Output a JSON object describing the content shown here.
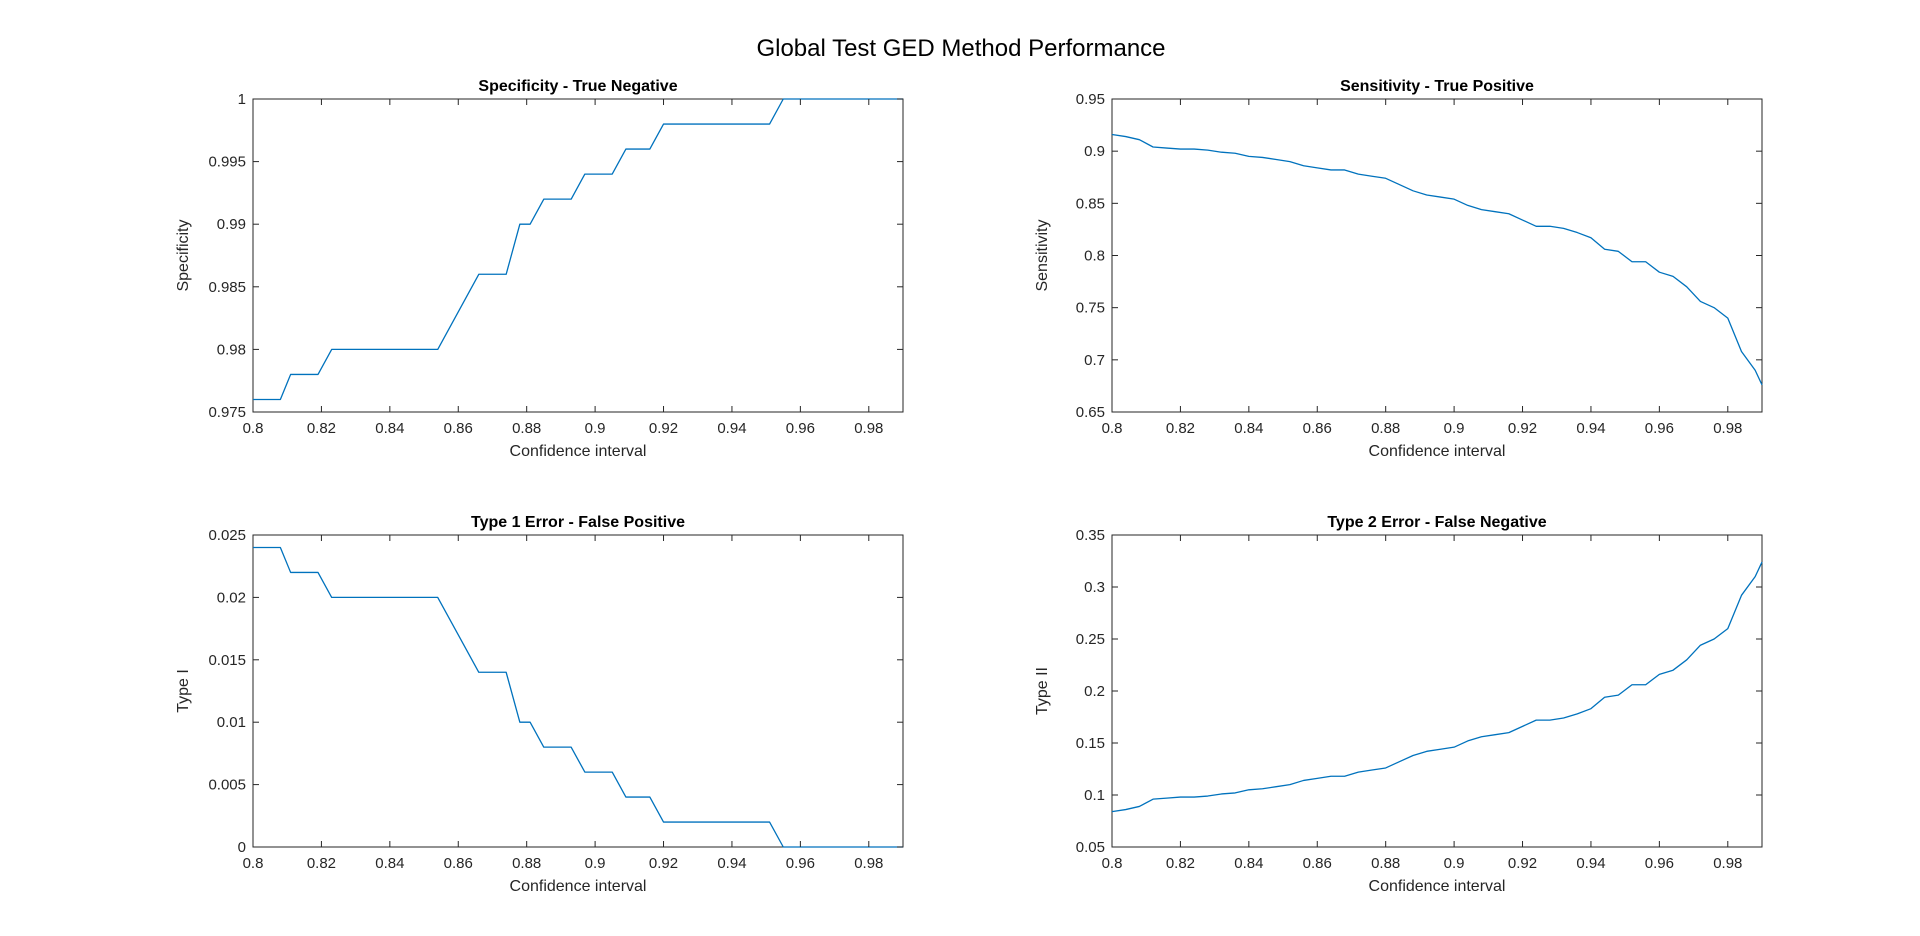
{
  "figure": {
    "title": "Global Test GED Method Performance",
    "line_color": "#0072BD",
    "axis_color": "#262626"
  },
  "chart_data": [
    {
      "type": "line",
      "title": "Specificity - True Negative",
      "xlabel": "Confidence interval",
      "ylabel": "Specificity",
      "xlim": [
        0.8,
        0.99
      ],
      "ylim": [
        0.975,
        1
      ],
      "xticks": [
        0.8,
        0.82,
        0.84,
        0.86,
        0.88,
        0.9,
        0.92,
        0.94,
        0.96,
        0.98
      ],
      "xtick_labels": [
        "0.8",
        "0.82",
        "0.84",
        "0.86",
        "0.88",
        "0.9",
        "0.92",
        "0.94",
        "0.96",
        "0.98"
      ],
      "yticks": [
        0.975,
        0.98,
        0.985,
        0.99,
        0.995,
        1
      ],
      "ytick_labels": [
        "0.975",
        "0.98",
        "0.985",
        "0.99",
        "0.995",
        "1"
      ],
      "grid": false,
      "series": [
        {
          "x": [
            0.8,
            0.808,
            0.811,
            0.819,
            0.823,
            0.854,
            0.866,
            0.874,
            0.878,
            0.881,
            0.885,
            0.893,
            0.897,
            0.905,
            0.909,
            0.916,
            0.92,
            0.951,
            0.955,
            0.99
          ],
          "y": [
            0.976,
            0.976,
            0.978,
            0.978,
            0.98,
            0.98,
            0.986,
            0.986,
            0.99,
            0.99,
            0.992,
            0.992,
            0.994,
            0.994,
            0.996,
            0.996,
            0.998,
            0.998,
            1.0,
            1.0
          ]
        }
      ]
    },
    {
      "type": "line",
      "title": "Sensitivity - True Positive",
      "xlabel": "Confidence interval",
      "ylabel": "Sensitivity",
      "xlim": [
        0.8,
        0.99
      ],
      "ylim": [
        0.65,
        0.95
      ],
      "xticks": [
        0.8,
        0.82,
        0.84,
        0.86,
        0.88,
        0.9,
        0.92,
        0.94,
        0.96,
        0.98
      ],
      "xtick_labels": [
        "0.8",
        "0.82",
        "0.84",
        "0.86",
        "0.88",
        "0.9",
        "0.92",
        "0.94",
        "0.96",
        "0.98"
      ],
      "yticks": [
        0.65,
        0.7,
        0.75,
        0.8,
        0.85,
        0.9,
        0.95
      ],
      "ytick_labels": [
        "0.65",
        "0.7",
        "0.75",
        "0.8",
        "0.85",
        "0.9",
        "0.95"
      ],
      "grid": false,
      "series": [
        {
          "x": [
            0.8,
            0.804,
            0.808,
            0.812,
            0.816,
            0.82,
            0.824,
            0.828,
            0.832,
            0.836,
            0.84,
            0.844,
            0.848,
            0.852,
            0.856,
            0.86,
            0.864,
            0.868,
            0.872,
            0.876,
            0.88,
            0.884,
            0.888,
            0.892,
            0.896,
            0.9,
            0.904,
            0.908,
            0.912,
            0.916,
            0.92,
            0.924,
            0.928,
            0.932,
            0.936,
            0.94,
            0.944,
            0.948,
            0.952,
            0.956,
            0.96,
            0.964,
            0.968,
            0.972,
            0.976,
            0.98,
            0.984,
            0.988,
            0.99
          ],
          "y": [
            0.916,
            0.914,
            0.911,
            0.904,
            0.903,
            0.902,
            0.902,
            0.901,
            0.899,
            0.898,
            0.895,
            0.894,
            0.892,
            0.89,
            0.886,
            0.884,
            0.882,
            0.882,
            0.878,
            0.876,
            0.874,
            0.868,
            0.862,
            0.858,
            0.856,
            0.854,
            0.848,
            0.844,
            0.842,
            0.84,
            0.834,
            0.828,
            0.828,
            0.826,
            0.822,
            0.817,
            0.806,
            0.804,
            0.794,
            0.794,
            0.784,
            0.78,
            0.77,
            0.756,
            0.75,
            0.74,
            0.708,
            0.69,
            0.676
          ]
        }
      ]
    },
    {
      "type": "line",
      "title": "Type 1 Error - False Positive",
      "xlabel": "Confidence interval",
      "ylabel": "Type I",
      "xlim": [
        0.8,
        0.99
      ],
      "ylim": [
        0,
        0.025
      ],
      "xticks": [
        0.8,
        0.82,
        0.84,
        0.86,
        0.88,
        0.9,
        0.92,
        0.94,
        0.96,
        0.98
      ],
      "xtick_labels": [
        "0.8",
        "0.82",
        "0.84",
        "0.86",
        "0.88",
        "0.9",
        "0.92",
        "0.94",
        "0.96",
        "0.98"
      ],
      "yticks": [
        0,
        0.005,
        0.01,
        0.015,
        0.02,
        0.025
      ],
      "ytick_labels": [
        "0",
        "0.005",
        "0.01",
        "0.015",
        "0.02",
        "0.025"
      ],
      "grid": false,
      "series": [
        {
          "x": [
            0.8,
            0.808,
            0.811,
            0.819,
            0.823,
            0.854,
            0.866,
            0.874,
            0.878,
            0.881,
            0.885,
            0.893,
            0.897,
            0.905,
            0.909,
            0.916,
            0.92,
            0.951,
            0.955,
            0.99
          ],
          "y": [
            0.024,
            0.024,
            0.022,
            0.022,
            0.02,
            0.02,
            0.014,
            0.014,
            0.01,
            0.01,
            0.008,
            0.008,
            0.006,
            0.006,
            0.004,
            0.004,
            0.002,
            0.002,
            0.0,
            0.0
          ]
        }
      ]
    },
    {
      "type": "line",
      "title": "Type 2 Error - False Negative",
      "xlabel": "Confidence interval",
      "ylabel": "Type II",
      "xlim": [
        0.8,
        0.99
      ],
      "ylim": [
        0.05,
        0.35
      ],
      "xticks": [
        0.8,
        0.82,
        0.84,
        0.86,
        0.88,
        0.9,
        0.92,
        0.94,
        0.96,
        0.98
      ],
      "xtick_labels": [
        "0.8",
        "0.82",
        "0.84",
        "0.86",
        "0.88",
        "0.9",
        "0.92",
        "0.94",
        "0.96",
        "0.98"
      ],
      "yticks": [
        0.05,
        0.1,
        0.15,
        0.2,
        0.25,
        0.3,
        0.35
      ],
      "ytick_labels": [
        "0.05",
        "0.1",
        "0.15",
        "0.2",
        "0.25",
        "0.3",
        "0.35"
      ],
      "grid": false,
      "series": [
        {
          "x": [
            0.8,
            0.804,
            0.808,
            0.812,
            0.816,
            0.82,
            0.824,
            0.828,
            0.832,
            0.836,
            0.84,
            0.844,
            0.848,
            0.852,
            0.856,
            0.86,
            0.864,
            0.868,
            0.872,
            0.876,
            0.88,
            0.884,
            0.888,
            0.892,
            0.896,
            0.9,
            0.904,
            0.908,
            0.912,
            0.916,
            0.92,
            0.924,
            0.928,
            0.932,
            0.936,
            0.94,
            0.944,
            0.948,
            0.952,
            0.956,
            0.96,
            0.964,
            0.968,
            0.972,
            0.976,
            0.98,
            0.984,
            0.988,
            0.99
          ],
          "y": [
            0.084,
            0.086,
            0.089,
            0.096,
            0.097,
            0.098,
            0.098,
            0.099,
            0.101,
            0.102,
            0.105,
            0.106,
            0.108,
            0.11,
            0.114,
            0.116,
            0.118,
            0.118,
            0.122,
            0.124,
            0.126,
            0.132,
            0.138,
            0.142,
            0.144,
            0.146,
            0.152,
            0.156,
            0.158,
            0.16,
            0.166,
            0.172,
            0.172,
            0.174,
            0.178,
            0.183,
            0.194,
            0.196,
            0.206,
            0.206,
            0.216,
            0.22,
            0.23,
            0.244,
            0.25,
            0.26,
            0.292,
            0.31,
            0.324
          ]
        }
      ]
    }
  ]
}
